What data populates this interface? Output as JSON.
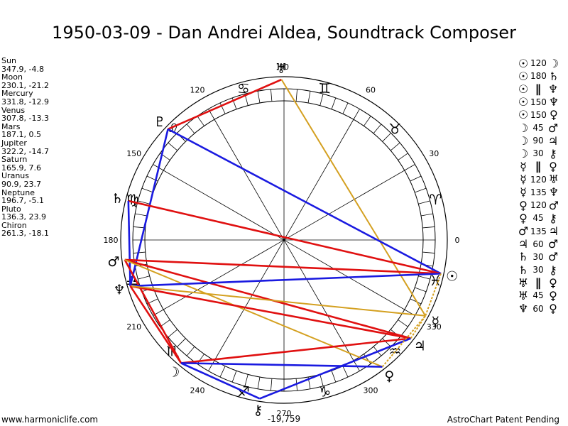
{
  "title": "1950-03-09 - Dan Andrei Aldea, Soundtrack Composer",
  "footer": {
    "website": "www.harmoniclife.com",
    "credit": "AstroChart Patent Pending"
  },
  "colors": {
    "hard_aspect": "#e01010",
    "soft_aspect": "#1a1ae0",
    "minor_aspect": "#d4a020"
  },
  "planets": [
    {
      "name": "Sun",
      "coords": "347.9, -4.8",
      "glyph": "☉"
    },
    {
      "name": "Moon",
      "coords": "230.1, -21.2",
      "glyph": "☽"
    },
    {
      "name": "Mercury",
      "coords": "331.8, -12.9",
      "glyph": "☿"
    },
    {
      "name": "Venus",
      "coords": "307.8, -13.3",
      "glyph": "♀"
    },
    {
      "name": "Mars",
      "coords": "187.1, 0.5",
      "glyph": "♂"
    },
    {
      "name": "Jupiter",
      "coords": "322.2, -14.7",
      "glyph": "♃"
    },
    {
      "name": "Saturn",
      "coords": "165.9, 7.6",
      "glyph": "♄"
    },
    {
      "name": "Uranus",
      "coords": "90.9, 23.7",
      "glyph": "♅"
    },
    {
      "name": "Neptune",
      "coords": "196.7, -5.1",
      "glyph": "♆"
    },
    {
      "name": "Pluto",
      "coords": "136.3, 23.9",
      "glyph": "♇"
    },
    {
      "name": "Chiron",
      "coords": "261.3, -18.1",
      "glyph": "⚷"
    }
  ],
  "aspects": [
    {
      "p1": "☉",
      "angle": "120",
      "p2": "☽"
    },
    {
      "p1": "☉",
      "angle": "180",
      "p2": "♄"
    },
    {
      "p1": "☉",
      "angle": "∥",
      "p2": "♆"
    },
    {
      "p1": "☉",
      "angle": "150",
      "p2": "♆"
    },
    {
      "p1": "☉",
      "angle": "150",
      "p2": "♀"
    },
    {
      "p1": "☽",
      "angle": "45",
      "p2": "♂"
    },
    {
      "p1": "☽",
      "angle": "90",
      "p2": "♃"
    },
    {
      "p1": "☽",
      "angle": "30",
      "p2": "⚷"
    },
    {
      "p1": "☿",
      "angle": "∥",
      "p2": "♀"
    },
    {
      "p1": "☿",
      "angle": "120",
      "p2": "♅"
    },
    {
      "p1": "☿",
      "angle": "135",
      "p2": "♆"
    },
    {
      "p1": "♀",
      "angle": "120",
      "p2": "♂"
    },
    {
      "p1": "♀",
      "angle": "45",
      "p2": "⚷"
    },
    {
      "p1": "♂",
      "angle": "135",
      "p2": "♃"
    },
    {
      "p1": "♃",
      "angle": "60",
      "p2": "♂"
    },
    {
      "p1": "♄",
      "angle": "30",
      "p2": "♂"
    },
    {
      "p1": "♄",
      "angle": "30",
      "p2": "⚷"
    },
    {
      "p1": "♅",
      "angle": "∥",
      "p2": "♀"
    },
    {
      "p1": "♅",
      "angle": "45",
      "p2": "♀"
    },
    {
      "p1": "♆",
      "angle": "60",
      "p2": "♀"
    }
  ],
  "wheel": {
    "degree_labels": [
      {
        "deg": 0,
        "text": "0"
      },
      {
        "deg": 30,
        "text": "30"
      },
      {
        "deg": 60,
        "text": "60"
      },
      {
        "deg": 90,
        "text": "90"
      },
      {
        "deg": 120,
        "text": "120"
      },
      {
        "deg": 150,
        "text": "150"
      },
      {
        "deg": 180,
        "text": "180"
      },
      {
        "deg": 210,
        "text": "210"
      },
      {
        "deg": 240,
        "text": "240"
      },
      {
        "deg": 270,
        "text": "270"
      },
      {
        "deg": 300,
        "text": "300"
      },
      {
        "deg": 330,
        "text": "330"
      }
    ],
    "bottom_value": "-19,759",
    "signs": [
      {
        "deg": 15,
        "glyph": "♈"
      },
      {
        "deg": 45,
        "glyph": "♉"
      },
      {
        "deg": 75,
        "glyph": "♊"
      },
      {
        "deg": 105,
        "glyph": "♋"
      },
      {
        "deg": 135,
        "glyph": "♌"
      },
      {
        "deg": 165,
        "glyph": "♍"
      },
      {
        "deg": 195,
        "glyph": "♎"
      },
      {
        "deg": 225,
        "glyph": "♏"
      },
      {
        "deg": 255,
        "glyph": "♐"
      },
      {
        "deg": 285,
        "glyph": "♑"
      },
      {
        "deg": 315,
        "glyph": "♒"
      },
      {
        "deg": 345,
        "glyph": "♓"
      }
    ],
    "planet_marks": [
      {
        "name": "Sun",
        "glyph": "☉",
        "deg": 347.9
      },
      {
        "name": "Moon",
        "glyph": "☽",
        "deg": 230.1
      },
      {
        "name": "Mercury",
        "glyph": "☿",
        "deg": 331.8
      },
      {
        "name": "Venus",
        "glyph": "♀",
        "deg": 307.8
      },
      {
        "name": "Mars",
        "glyph": "♂",
        "deg": 187.1
      },
      {
        "name": "Jupiter",
        "glyph": "♃",
        "deg": 322.2
      },
      {
        "name": "Saturn",
        "glyph": "♄",
        "deg": 165.9
      },
      {
        "name": "Uranus",
        "glyph": "♅",
        "deg": 90.9
      },
      {
        "name": "Neptune",
        "glyph": "♆",
        "deg": 196.7
      },
      {
        "name": "Pluto",
        "glyph": "♇",
        "deg": 136.3
      },
      {
        "name": "Chiron",
        "glyph": "⚷",
        "deg": 261.3
      }
    ],
    "aspect_lines": [
      {
        "a": "Uranus",
        "b": "Pluto",
        "type": "hard"
      },
      {
        "a": "Uranus",
        "b": "Mercury",
        "type": "minor"
      },
      {
        "a": "Pluto",
        "b": "Sun",
        "type": "soft"
      },
      {
        "a": "Pluto",
        "b": "Neptune",
        "type": "soft"
      },
      {
        "a": "Saturn",
        "b": "Sun",
        "type": "hard"
      },
      {
        "a": "Saturn",
        "b": "Neptune",
        "type": "soft"
      },
      {
        "a": "Mars",
        "b": "Sun",
        "type": "hard"
      },
      {
        "a": "Mars",
        "b": "Jupiter",
        "type": "hard"
      },
      {
        "a": "Mars",
        "b": "Moon",
        "type": "hard"
      },
      {
        "a": "Mars",
        "b": "Venus",
        "type": "minor"
      },
      {
        "a": "Neptune",
        "b": "Sun",
        "type": "soft"
      },
      {
        "a": "Neptune",
        "b": "Jupiter",
        "type": "hard"
      },
      {
        "a": "Neptune",
        "b": "Mercury",
        "type": "minor"
      },
      {
        "a": "Neptune",
        "b": "Moon",
        "type": "hard"
      },
      {
        "a": "Moon",
        "b": "Chiron",
        "type": "soft"
      },
      {
        "a": "Moon",
        "b": "Jupiter",
        "type": "hard"
      },
      {
        "a": "Moon",
        "b": "Venus",
        "type": "soft"
      },
      {
        "a": "Chiron",
        "b": "Jupiter",
        "type": "soft"
      },
      {
        "a": "Venus",
        "b": "Mercury",
        "type": "minor"
      },
      {
        "a": "Sun",
        "b": "Mercury",
        "type": "minor"
      },
      {
        "a": "Jupiter",
        "b": "Mercury",
        "type": "minor"
      }
    ]
  }
}
